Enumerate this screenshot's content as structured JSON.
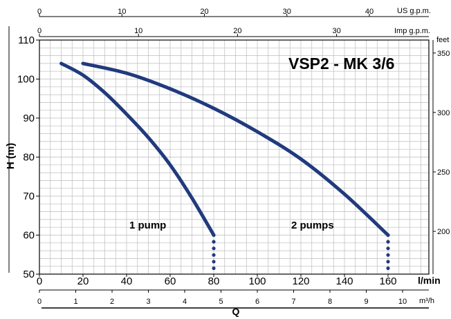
{
  "chart_data": {
    "type": "line",
    "title": "VSP2 - MK 3/6",
    "xlabel": "Q",
    "ylabel": "H (m)",
    "x_unit": "l/min",
    "secondary_y_unit": "feet",
    "xlim": [
      0,
      180
    ],
    "ylim": [
      50,
      110
    ],
    "grid": true,
    "x_ticks": [
      0,
      20,
      40,
      60,
      80,
      100,
      120,
      140,
      160
    ],
    "y_ticks": [
      50,
      60,
      70,
      80,
      90,
      100,
      110
    ],
    "feet_ticks": [
      200,
      250,
      300,
      350
    ],
    "top_axes": [
      {
        "unit": "US g.p.m.",
        "ticks": [
          0,
          10,
          20,
          30,
          40
        ]
      },
      {
        "unit": "Imp g.p.m.",
        "ticks": [
          0,
          10,
          20,
          30
        ]
      }
    ],
    "bottom_axis_m3h": {
      "unit": "m³/h",
      "ticks": [
        0,
        1,
        2,
        3,
        4,
        5,
        6,
        7,
        8,
        9,
        10
      ]
    },
    "series": [
      {
        "label": "1 pump",
        "x": [
          10,
          20,
          30,
          40,
          50,
          60,
          70,
          80
        ],
        "y": [
          104,
          101,
          96.5,
          91,
          85,
          78,
          69.5,
          60
        ],
        "dotted_x": 80,
        "dotted_y": [
          51.5,
          60
        ]
      },
      {
        "label": "2 pumps",
        "x": [
          20,
          40,
          60,
          80,
          100,
          120,
          140,
          160
        ],
        "y": [
          104,
          101.5,
          97.5,
          92.5,
          86.5,
          79.5,
          70.5,
          60
        ],
        "dotted_x": 160,
        "dotted_y": [
          51.5,
          60
        ]
      }
    ],
    "colors": {
      "curve": "#213a7e",
      "title": "#213a7e",
      "grid": "#bbbbbb"
    }
  }
}
